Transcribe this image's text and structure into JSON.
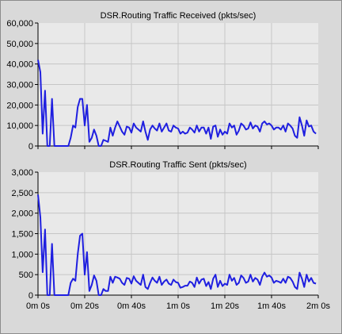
{
  "colors": {
    "background": "#d9d9d9",
    "plot_background": "#e9e9e9",
    "line": "#1f1fe0",
    "grid": "#c6c6c6",
    "axis": "#000000"
  },
  "x_ticks": [
    "0m 0s",
    "0m 20s",
    "0m 40s",
    "1m 0s",
    "1m 20s",
    "1m 40s",
    "2m 0s"
  ],
  "chart_data": [
    {
      "type": "line",
      "title": "DSR.Routing Traffic Received (pkts/sec)",
      "xlabel": "",
      "ylabel": "",
      "xlim": [
        0,
        120
      ],
      "ylim": [
        0,
        60000
      ],
      "yticks": [
        "0",
        "10,000",
        "20,000",
        "30,000",
        "40,000",
        "50,000",
        "60,000"
      ],
      "grid": true,
      "series": [
        {
          "x": [
            0,
            1,
            2,
            3,
            4,
            5,
            6,
            7,
            8,
            9,
            10,
            11,
            12,
            13,
            14,
            15,
            16,
            17,
            18,
            19,
            20,
            21,
            22,
            23,
            24,
            25,
            26,
            27,
            28,
            29,
            30,
            31,
            32,
            33,
            34,
            35,
            36,
            37,
            38,
            39,
            40,
            41,
            42,
            43,
            44,
            45,
            46,
            47,
            48,
            49,
            50,
            51,
            52,
            53,
            54,
            55,
            56,
            57,
            58,
            59,
            60,
            61,
            62,
            63,
            64,
            65,
            66,
            67,
            68,
            69,
            70,
            71,
            72,
            73,
            74,
            75,
            76,
            77,
            78,
            79,
            80,
            81,
            82,
            83,
            84,
            85,
            86,
            87,
            88,
            89,
            90,
            91,
            92,
            93,
            94,
            95,
            96,
            97,
            98,
            99,
            100,
            101,
            102,
            103,
            104,
            105,
            106,
            107,
            108,
            109,
            110,
            111,
            112,
            113,
            114,
            115,
            116,
            117,
            118,
            119
          ],
          "y": [
            42000,
            36000,
            6000,
            27000,
            0,
            0,
            23000,
            0,
            0,
            0,
            0,
            0,
            0,
            0,
            4000,
            10000,
            9000,
            19000,
            23000,
            23000,
            10000,
            20000,
            2000,
            4000,
            8000,
            5000,
            0,
            0,
            3000,
            2500,
            2000,
            9000,
            5000,
            9000,
            12000,
            9500,
            7000,
            5500,
            9500,
            9000,
            6500,
            11000,
            9000,
            8000,
            7000,
            12000,
            7000,
            3000,
            8000,
            10000,
            8500,
            7500,
            11000,
            7000,
            9000,
            11000,
            7500,
            7000,
            10000,
            9000,
            8500,
            6000,
            7000,
            6000,
            6500,
            9000,
            8000,
            6500,
            10000,
            7000,
            9000,
            9000,
            6000,
            9000,
            3500,
            9500,
            10000,
            4500,
            8000,
            5500,
            7000,
            6000,
            11000,
            9000,
            10000,
            5500,
            7500,
            11000,
            10000,
            8000,
            8500,
            11500,
            8500,
            10000,
            9500,
            7000,
            11000,
            12000,
            10500,
            11000,
            10000,
            8000,
            9000,
            9000,
            8000,
            10000,
            7000,
            11000,
            10000,
            8500,
            5000,
            4000,
            14000,
            10000,
            5000,
            12500,
            9500,
            10000,
            7000,
            6000
          ]
        }
      ]
    },
    {
      "type": "line",
      "title": "DSR.Routing Traffic Sent (pkts/sec)",
      "xlabel": "",
      "ylabel": "",
      "xlim": [
        0,
        120
      ],
      "ylim": [
        0,
        3000
      ],
      "yticks": [
        "0",
        "500",
        "1,000",
        "1,500",
        "2,000",
        "2,500",
        "3,000"
      ],
      "grid": true,
      "series": [
        {
          "x": [
            0,
            1,
            2,
            3,
            4,
            5,
            6,
            7,
            8,
            9,
            10,
            11,
            12,
            13,
            14,
            15,
            16,
            17,
            18,
            19,
            20,
            21,
            22,
            23,
            24,
            25,
            26,
            27,
            28,
            29,
            30,
            31,
            32,
            33,
            34,
            35,
            36,
            37,
            38,
            39,
            40,
            41,
            42,
            43,
            44,
            45,
            46,
            47,
            48,
            49,
            50,
            51,
            52,
            53,
            54,
            55,
            56,
            57,
            58,
            59,
            60,
            61,
            62,
            63,
            64,
            65,
            66,
            67,
            68,
            69,
            70,
            71,
            72,
            73,
            74,
            75,
            76,
            77,
            78,
            79,
            80,
            81,
            82,
            83,
            84,
            85,
            86,
            87,
            88,
            89,
            90,
            91,
            92,
            93,
            94,
            95,
            96,
            97,
            98,
            99,
            100,
            101,
            102,
            103,
            104,
            105,
            106,
            107,
            108,
            109,
            110,
            111,
            112,
            113,
            114,
            115,
            116,
            117,
            118,
            119
          ],
          "y": [
            2450,
            1900,
            560,
            1600,
            0,
            0,
            1250,
            0,
            0,
            0,
            0,
            0,
            0,
            0,
            300,
            400,
            350,
            1000,
            1450,
            1500,
            500,
            1050,
            100,
            250,
            480,
            350,
            0,
            0,
            150,
            100,
            100,
            450,
            300,
            450,
            430,
            400,
            300,
            250,
            420,
            400,
            280,
            460,
            350,
            300,
            250,
            500,
            200,
            150,
            300,
            430,
            350,
            300,
            450,
            250,
            330,
            380,
            280,
            250,
            380,
            320,
            300,
            180,
            200,
            230,
            230,
            330,
            300,
            200,
            430,
            280,
            380,
            400,
            220,
            320,
            150,
            400,
            500,
            200,
            350,
            220,
            280,
            250,
            500,
            350,
            420,
            250,
            300,
            480,
            420,
            300,
            330,
            500,
            330,
            420,
            380,
            250,
            450,
            550,
            450,
            480,
            430,
            300,
            350,
            330,
            300,
            400,
            300,
            450,
            420,
            330,
            200,
            150,
            550,
            400,
            200,
            500,
            330,
            420,
            300,
            280
          ]
        }
      ]
    }
  ]
}
